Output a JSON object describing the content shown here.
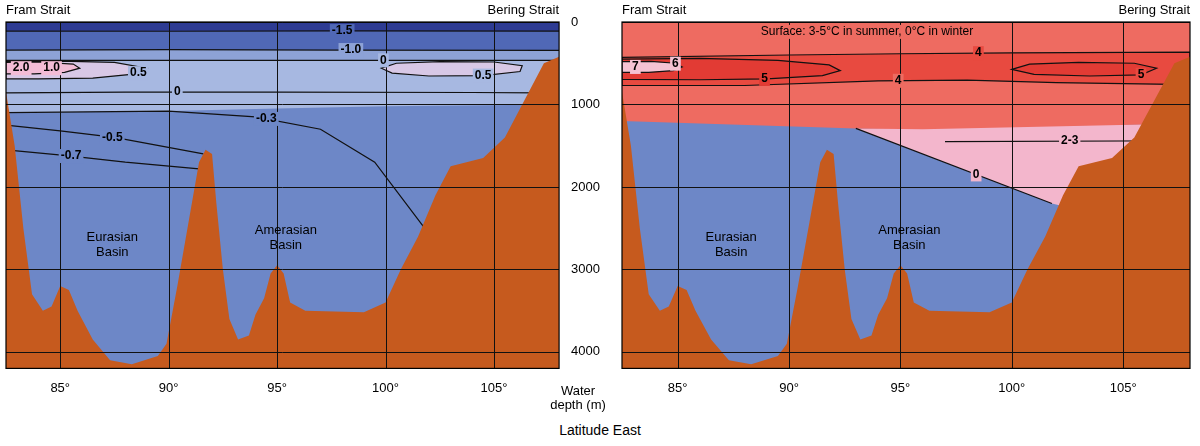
{
  "x_label": "Latitude East",
  "y_label": "Water depth (m)",
  "chart_data": [
    {
      "type": "contour",
      "left_end": "Fram Strait",
      "right_end": "Bering Strait",
      "xlim": [
        82.5,
        108
      ],
      "ylim": [
        4200,
        0
      ],
      "xticks": [
        {
          "value": 85,
          "label": "85°"
        },
        {
          "value": 90,
          "label": "90°"
        },
        {
          "value": 95,
          "label": "95°"
        },
        {
          "value": 100,
          "label": "100°"
        },
        {
          "value": 105,
          "label": "105°"
        }
      ],
      "yticks": [
        0,
        1000,
        2000,
        3000,
        4000
      ],
      "grid": true,
      "series": [
        {
          "type": "area",
          "color": "#6d87c7",
          "x": [
            82.5,
            108,
            108,
            82.5
          ],
          "values": [
            0,
            0,
            4200,
            4200
          ]
        },
        {
          "type": "area",
          "color": "#a7b8e1",
          "x": [
            82.5,
            108,
            108,
            100,
            95,
            90,
            82.5
          ],
          "values": [
            0,
            0,
            1000,
            1020,
            1050,
            1080,
            1100
          ]
        },
        {
          "type": "area",
          "color": "#8da2d6",
          "x": [
            82.5,
            108,
            108,
            82.5
          ],
          "values": [
            0,
            0,
            465,
            465
          ]
        },
        {
          "type": "area",
          "color": "#5068b6",
          "x": [
            82.5,
            108,
            108,
            82.5
          ],
          "values": [
            0,
            0,
            340,
            340
          ]
        },
        {
          "type": "area",
          "color": "#2e3b93",
          "x": [
            82.5,
            108,
            108,
            82.5
          ],
          "values": [
            0,
            0,
            110,
            110
          ]
        },
        {
          "type": "area",
          "color": "#d8c8e6",
          "line_style": "solid",
          "x": [
            82.5,
            85,
            87.5,
            89,
            88.5,
            86.5,
            84,
            82.5
          ],
          "values": [
            480,
            475,
            490,
            560,
            630,
            680,
            690,
            690
          ]
        },
        {
          "type": "area",
          "color": "#f3bcd6",
          "line_style": "solid",
          "x": [
            82.5,
            84,
            85.6,
            85.9,
            85.2,
            83.8,
            82.5
          ],
          "values": [
            490,
            485,
            510,
            560,
            610,
            630,
            630
          ]
        },
        {
          "type": "area",
          "color": "#d8c8e6",
          "line_style": "solid",
          "x": [
            99.8,
            100.5,
            102.5,
            105,
            106.3,
            106.2,
            104.5,
            102,
            100.3
          ],
          "values": [
            560,
            500,
            480,
            485,
            530,
            600,
            650,
            655,
            620
          ]
        },
        {
          "type": "line",
          "color": "#111111",
          "line_style": "solid",
          "x": [
            82.5,
            90,
            98,
            108
          ],
          "values": [
            110,
            112,
            108,
            110
          ]
        },
        {
          "type": "line",
          "color": "#111111",
          "line_style": "solid",
          "x": [
            82.5,
            90,
            98,
            108
          ],
          "values": [
            340,
            335,
            340,
            345
          ]
        },
        {
          "type": "line",
          "color": "#111111",
          "line_style": "solid",
          "x": [
            82.5,
            95,
            108
          ],
          "values": [
            465,
            465,
            465
          ]
        },
        {
          "type": "line",
          "color": "#111111",
          "line_style": "solid",
          "x": [
            82.5,
            88,
            95,
            104,
            107
          ],
          "values": [
            860,
            850,
            850,
            855,
            860
          ]
        },
        {
          "type": "line",
          "color": "#111111",
          "line_style": "solid",
          "x": [
            82.5,
            90,
            94,
            97,
            99.5,
            101.8
          ],
          "values": [
            1100,
            1080,
            1150,
            1300,
            1700,
            2500
          ]
        },
        {
          "type": "line",
          "color": "#111111",
          "line_style": "solid",
          "x": [
            82.5,
            85,
            87.5,
            91.6
          ],
          "values": [
            1250,
            1320,
            1400,
            1600
          ]
        },
        {
          "type": "line",
          "color": "#111111",
          "line_style": "solid",
          "x": [
            82.5,
            85.3,
            88,
            91.4
          ],
          "values": [
            1550,
            1620,
            1700,
            1780
          ]
        },
        {
          "type": "area",
          "color": "#c65a1e",
          "x": [
            82.5,
            82.9,
            83.3,
            83.7,
            84.2,
            84.6,
            85.0,
            85.4,
            85.8,
            86.5,
            87.3,
            88.3,
            89.5,
            89.9,
            90.4,
            91.0,
            91.4,
            91.7,
            92.0,
            92.2,
            92.5,
            92.8,
            93.2,
            93.7,
            94.0,
            94.4,
            94.7,
            95.0,
            95.3,
            95.6,
            96.3,
            99.0,
            100.0,
            100.7,
            101.5,
            102.3,
            103.0,
            104.5,
            105.5,
            106.5,
            107.3,
            108.0,
            108.0,
            82.5
          ],
          "values": [
            850,
            1500,
            2500,
            3300,
            3500,
            3450,
            3200,
            3250,
            3500,
            3850,
            4100,
            4150,
            4050,
            3900,
            3200,
            2300,
            1700,
            1550,
            1600,
            2200,
            3000,
            3600,
            3850,
            3800,
            3550,
            3350,
            3050,
            2950,
            3050,
            3400,
            3500,
            3520,
            3400,
            3000,
            2600,
            2100,
            1750,
            1650,
            1400,
            900,
            500,
            420,
            4200,
            4200
          ]
        }
      ],
      "contour_labels": [
        {
          "text": "-1.5",
          "x": 98.0,
          "y": 110
        },
        {
          "text": "-1.0",
          "x": 98.4,
          "y": 340
        },
        {
          "text": "0",
          "x": 99.9,
          "y": 465
        },
        {
          "text": "2.0",
          "x": 83.2,
          "y": 560
        },
        {
          "text": "1.0",
          "x": 84.6,
          "y": 560
        },
        {
          "text": "0.5",
          "x": 88.6,
          "y": 620
        },
        {
          "text": "0.5",
          "x": 104.5,
          "y": 650
        },
        {
          "text": "0",
          "x": 90.4,
          "y": 850
        },
        {
          "text": "-0.3",
          "x": 94.5,
          "y": 1175
        },
        {
          "text": "-0.5",
          "x": 87.4,
          "y": 1400
        },
        {
          "text": "-0.7",
          "x": 85.5,
          "y": 1625
        }
      ],
      "regions": [
        {
          "text": "Eurasian Basin",
          "x": 87.4,
          "y": 2700
        },
        {
          "text": "Amerasian Basin",
          "x": 95.4,
          "y": 2620
        }
      ]
    },
    {
      "type": "contour",
      "left_end": "Fram Strait",
      "right_end": "Bering Strait",
      "xlim": [
        82.5,
        108
      ],
      "ylim": [
        4200,
        0
      ],
      "xticks": [
        {
          "value": 85,
          "label": "85°"
        },
        {
          "value": 90,
          "label": "90°"
        },
        {
          "value": 95,
          "label": "95°"
        },
        {
          "value": 100,
          "label": "100°"
        },
        {
          "value": 105,
          "label": "105°"
        }
      ],
      "yticks": [
        0,
        1000,
        2000,
        3000,
        4000
      ],
      "grid": true,
      "tick_labels": "x",
      "series": [
        {
          "type": "area",
          "color": "#6d87c7",
          "x": [
            82.5,
            108,
            108,
            82.5
          ],
          "values": [
            0,
            0,
            4200,
            4200
          ]
        },
        {
          "type": "area",
          "color": "#f3b6cc",
          "x": [
            93,
            108,
            108,
            101.8
          ],
          "values": [
            1290,
            1230,
            2600,
            2200
          ]
        },
        {
          "type": "area",
          "color": "#ee6b61",
          "x": [
            82.5,
            108,
            108,
            96,
            93,
            82.5
          ],
          "values": [
            0,
            0,
            1230,
            1300,
            1290,
            1200
          ]
        },
        {
          "type": "area",
          "color": "#e84a40",
          "line_style": "solid",
          "x": [
            82.5,
            90,
            95,
            100,
            108,
            108,
            102,
            98,
            94,
            88,
            82.5
          ],
          "values": [
            430,
            400,
            385,
            375,
            365,
            760,
            735,
            705,
            715,
            770,
            770
          ]
        },
        {
          "type": "area",
          "color": "#e23b34",
          "line_style": "solid",
          "x": [
            82.5,
            86,
            89.5,
            91.8,
            92.3,
            91.5,
            89,
            86,
            82.5
          ],
          "values": [
            450,
            440,
            465,
            520,
            590,
            650,
            690,
            700,
            695
          ]
        },
        {
          "type": "area",
          "color": "#f5c3d3",
          "line_style": "solid",
          "x": [
            82.5,
            83.8,
            84.9,
            85.2,
            84.8,
            83.7,
            82.5
          ],
          "values": [
            480,
            478,
            500,
            545,
            590,
            610,
            610
          ]
        },
        {
          "type": "area",
          "color": "#e23b34",
          "line_style": "solid",
          "x": [
            100,
            100.8,
            103,
            105.5,
            106.5,
            105.8,
            103.5,
            101
          ],
          "values": [
            575,
            510,
            490,
            500,
            560,
            640,
            655,
            635
          ]
        },
        {
          "type": "line",
          "color": "#111111",
          "line_style": "solid",
          "x": [
            97,
            108
          ],
          "values": [
            1450,
            1440
          ]
        },
        {
          "type": "line",
          "color": "#111111",
          "line_style": "solid",
          "x": [
            93,
            101.8
          ],
          "values": [
            1290,
            2200
          ]
        },
        {
          "type": "area",
          "color": "#c65a1e",
          "x": [
            82.5,
            82.9,
            83.3,
            83.7,
            84.2,
            84.6,
            85.0,
            85.4,
            85.8,
            86.5,
            87.3,
            88.3,
            89.5,
            89.9,
            90.4,
            91.0,
            91.4,
            91.7,
            92.0,
            92.2,
            92.5,
            92.8,
            93.2,
            93.7,
            94.0,
            94.4,
            94.7,
            95.0,
            95.3,
            95.6,
            96.3,
            99.0,
            100.0,
            100.7,
            101.5,
            102.3,
            103.0,
            104.5,
            105.5,
            106.5,
            107.3,
            108.0,
            108.0,
            82.5
          ],
          "values": [
            850,
            1500,
            2500,
            3300,
            3500,
            3450,
            3200,
            3250,
            3500,
            3850,
            4100,
            4150,
            4050,
            3900,
            3200,
            2300,
            1700,
            1550,
            1600,
            2200,
            3000,
            3600,
            3850,
            3800,
            3550,
            3350,
            3050,
            2950,
            3050,
            3400,
            3500,
            3520,
            3400,
            3000,
            2600,
            2100,
            1750,
            1650,
            1400,
            900,
            500,
            420,
            4200,
            4200
          ]
        }
      ],
      "contour_labels": [
        {
          "text": "4",
          "x": 98.5,
          "y": 378
        },
        {
          "text": "7",
          "x": 83.1,
          "y": 545
        },
        {
          "text": "6",
          "x": 84.9,
          "y": 505
        },
        {
          "text": "5",
          "x": 88.9,
          "y": 690
        },
        {
          "text": "4",
          "x": 94.9,
          "y": 713
        },
        {
          "text": "5",
          "x": 105.8,
          "y": 640
        },
        {
          "text": "2-3",
          "x": 102.6,
          "y": 1445
        },
        {
          "text": "0",
          "x": 98.4,
          "y": 1848
        }
      ],
      "notes": [
        {
          "text": "Surface: 3-5°C in summer, 0°C in winter",
          "x": 93.5,
          "y": 120
        }
      ],
      "regions": [
        {
          "text": "Eurasian Basin",
          "x": 87.4,
          "y": 2700
        },
        {
          "text": "Amerasian Basin",
          "x": 95.4,
          "y": 2620
        }
      ]
    }
  ]
}
